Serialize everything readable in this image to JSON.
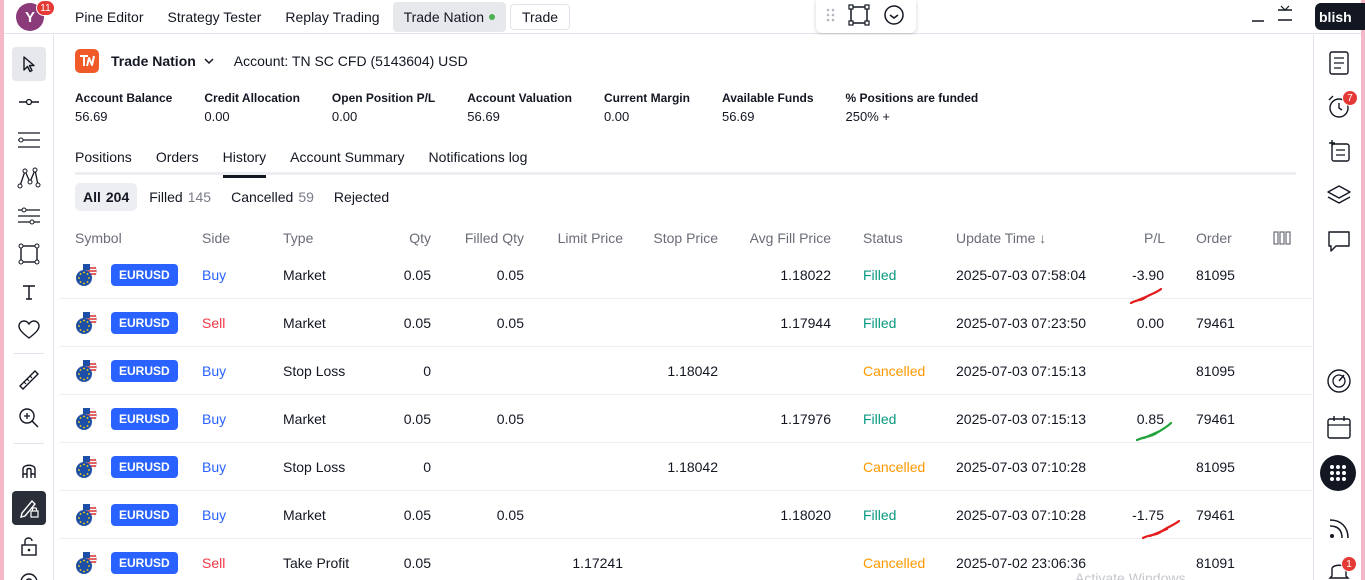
{
  "app": {
    "avatar_letter": "Y",
    "avatar_badge": "11",
    "tabs": [
      "Pine Editor",
      "Strategy Tester",
      "Replay Trading",
      "Trade Nation",
      "Trade"
    ],
    "active_tab": "Trade Nation",
    "publish_label": "blish"
  },
  "broker": {
    "name": "Trade Nation",
    "account": "Account: TN SC CFD (5143604) USD"
  },
  "summary": [
    {
      "label": "Account Balance",
      "value": "56.69"
    },
    {
      "label": "Credit Allocation",
      "value": "0.00"
    },
    {
      "label": "Open Position P/L",
      "value": "0.00"
    },
    {
      "label": "Account Valuation",
      "value": "56.69"
    },
    {
      "label": "Current Margin",
      "value": "0.00"
    },
    {
      "label": "Available Funds",
      "value": "56.69"
    },
    {
      "label": "% Positions are funded",
      "value": "250% +"
    }
  ],
  "tabs": [
    "Positions",
    "Orders",
    "History",
    "Account Summary",
    "Notifications log"
  ],
  "active_tab": "History",
  "filters": [
    {
      "label": "All",
      "count": "204"
    },
    {
      "label": "Filled",
      "count": "145"
    },
    {
      "label": "Cancelled",
      "count": "59"
    },
    {
      "label": "Rejected",
      "count": ""
    }
  ],
  "columns": {
    "symbol": "Symbol",
    "side": "Side",
    "type": "Type",
    "qty": "Qty",
    "filled_qty": "Filled Qty",
    "limit_price": "Limit Price",
    "stop_price": "Stop Price",
    "avg_fill": "Avg Fill Price",
    "status": "Status",
    "update_time": "Update Time ↓",
    "pl": "P/L",
    "order": "Order"
  },
  "rows": [
    {
      "symbol": "EURUSD",
      "side": "Buy",
      "type": "Market",
      "qty": "0.05",
      "filled_qty": "0.05",
      "limit_price": "",
      "stop_price": "",
      "avg_fill": "1.18022",
      "status": "Filled",
      "update_time": "2025-07-03 07:58:04",
      "pl": "-3.90",
      "order": "81095"
    },
    {
      "symbol": "EURUSD",
      "side": "Sell",
      "type": "Market",
      "qty": "0.05",
      "filled_qty": "0.05",
      "limit_price": "",
      "stop_price": "",
      "avg_fill": "1.17944",
      "status": "Filled",
      "update_time": "2025-07-03 07:23:50",
      "pl": "0.00",
      "order": "79461"
    },
    {
      "symbol": "EURUSD",
      "side": "Buy",
      "type": "Stop Loss",
      "qty": "0",
      "filled_qty": "",
      "limit_price": "",
      "stop_price": "1.18042",
      "avg_fill": "",
      "status": "Cancelled",
      "update_time": "2025-07-03 07:15:13",
      "pl": "",
      "order": "81095"
    },
    {
      "symbol": "EURUSD",
      "side": "Buy",
      "type": "Market",
      "qty": "0.05",
      "filled_qty": "0.05",
      "limit_price": "",
      "stop_price": "",
      "avg_fill": "1.17976",
      "status": "Filled",
      "update_time": "2025-07-03 07:15:13",
      "pl": "0.85",
      "order": "79461"
    },
    {
      "symbol": "EURUSD",
      "side": "Buy",
      "type": "Stop Loss",
      "qty": "0",
      "filled_qty": "",
      "limit_price": "",
      "stop_price": "1.18042",
      "avg_fill": "",
      "status": "Cancelled",
      "update_time": "2025-07-03 07:10:28",
      "pl": "",
      "order": "81095"
    },
    {
      "symbol": "EURUSD",
      "side": "Buy",
      "type": "Market",
      "qty": "0.05",
      "filled_qty": "0.05",
      "limit_price": "",
      "stop_price": "",
      "avg_fill": "1.18020",
      "status": "Filled",
      "update_time": "2025-07-03 07:10:28",
      "pl": "-1.75",
      "order": "79461"
    },
    {
      "symbol": "EURUSD",
      "side": "Sell",
      "type": "Take Profit",
      "qty": "0.05",
      "filled_qty": "",
      "limit_price": "1.17241",
      "stop_price": "",
      "avg_fill": "",
      "status": "Cancelled",
      "update_time": "2025-07-02 23:06:36",
      "pl": "",
      "order": "81091"
    }
  ],
  "right_toolbar": {
    "alerts_badge": "7",
    "notifications_badge": "1"
  },
  "watermark": "Activate Windows",
  "colors": {
    "accent": "#2962ff",
    "sell": "#f23645",
    "filled": "#089981",
    "cancelled": "#ff9800",
    "broker_logo": "#f05a28"
  }
}
